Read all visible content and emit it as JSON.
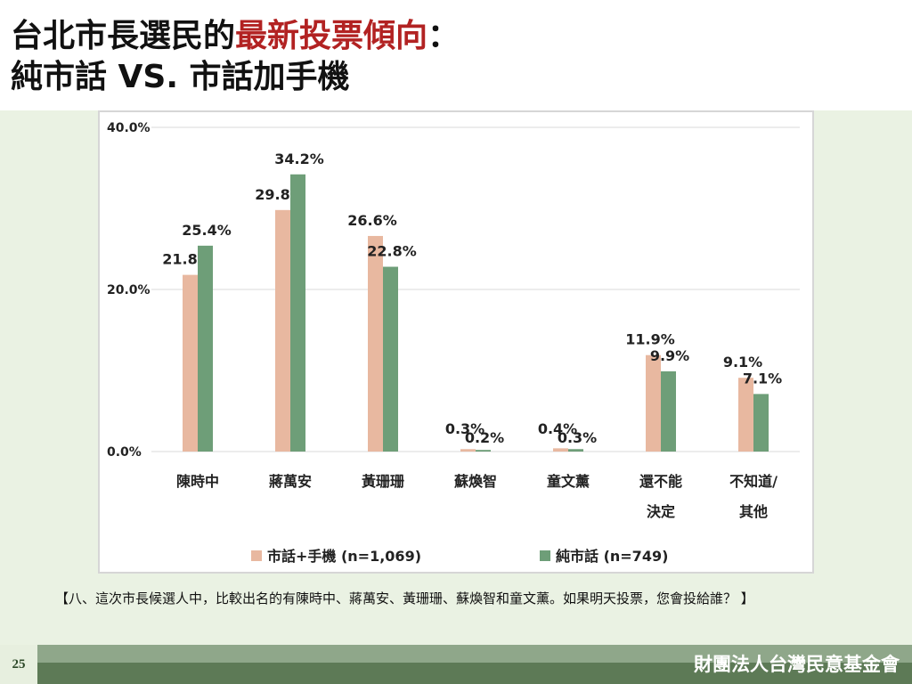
{
  "title": {
    "part1": "台北市長選民的",
    "part_highlight": "最新投票傾向",
    "part2": "：",
    "line2": "純市話 VS. 市話加手機"
  },
  "note": "【八、這次市長候選人中，比較出名的有陳時中、蔣萬安、黃珊珊、蘇煥智和童文薰。如果明天投票，您會投給誰？ 】",
  "page_number": "25",
  "organization": "財團法人台灣民意基金會",
  "colors": {
    "accent": "#b22222",
    "series1": "#e8b8a0",
    "series2": "#6e9e78",
    "panel": "#eaf2e3",
    "footer": "#5d7a56"
  },
  "chart_data": {
    "type": "bar",
    "categories": [
      [
        "陳時中"
      ],
      [
        "蔣萬安"
      ],
      [
        "黃珊珊"
      ],
      [
        "蘇煥智"
      ],
      [
        "童文薰"
      ],
      [
        "還不能",
        "決定"
      ],
      [
        "不知道/",
        "其他"
      ]
    ],
    "series": [
      {
        "name": "市話+手機 (n=1,069)",
        "values": [
          21.8,
          29.8,
          26.6,
          0.3,
          0.4,
          11.9,
          9.1
        ],
        "color": "#e8b8a0"
      },
      {
        "name": "純市話 (n=749)",
        "values": [
          25.4,
          34.2,
          22.8,
          0.2,
          0.3,
          9.9,
          7.1
        ],
        "color": "#6e9e78"
      }
    ],
    "ylim": [
      0,
      40
    ],
    "yticks": [
      "0.0%",
      "20.0%",
      "40.0%"
    ],
    "grid": true,
    "legend": "bottom"
  }
}
